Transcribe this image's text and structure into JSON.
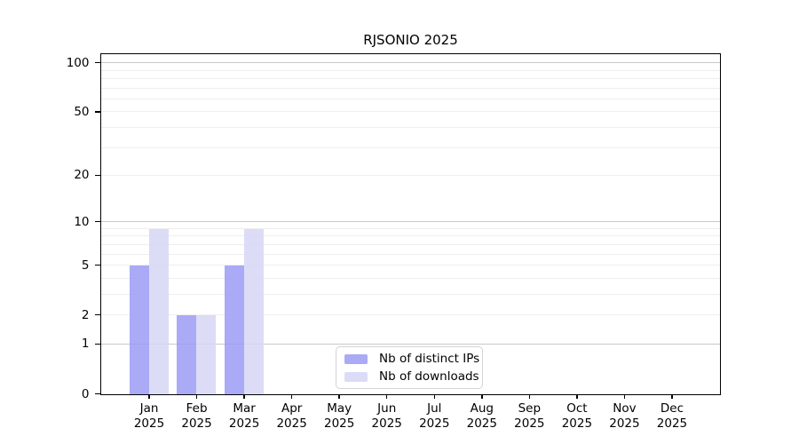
{
  "chart_data": {
    "type": "bar",
    "title": "RJSONIO 2025",
    "categories": [
      "Jan",
      "Feb",
      "Mar",
      "Apr",
      "May",
      "Jun",
      "Jul",
      "Aug",
      "Sep",
      "Oct",
      "Nov",
      "Dec"
    ],
    "x_year_label": "2025",
    "series": [
      {
        "name": "Nb of distinct IPs",
        "color": "rgba(155,155,246,0.85)",
        "solid_color": "#aaaaf7",
        "values": [
          5,
          2,
          5,
          0,
          0,
          0,
          0,
          0,
          0,
          0,
          0,
          0
        ]
      },
      {
        "name": "Nb of downloads",
        "color": "rgba(214,214,246,0.85)",
        "solid_color": "#dcdcf7",
        "values": [
          9,
          2,
          9,
          0,
          0,
          0,
          0,
          0,
          0,
          0,
          0,
          0
        ]
      }
    ],
    "y_axis": {
      "scale": "log10(value+1)",
      "tick_values": [
        0,
        1,
        2,
        5,
        10,
        20,
        50,
        100
      ],
      "tick_labels": [
        "0",
        "1",
        "2",
        "5",
        "10",
        "20",
        "50",
        "100"
      ],
      "axis_top_value": 112,
      "major_gridlines": [
        1,
        10,
        100
      ],
      "minor_gridlines": [
        2,
        3,
        4,
        5,
        6,
        7,
        8,
        9,
        20,
        30,
        40,
        50,
        60,
        70,
        80,
        90
      ]
    },
    "legend": {
      "position": "bottom-center"
    },
    "grid": "horizontal",
    "colors": {
      "axis": "#000000",
      "major_grid": "#c9c9c9",
      "minor_grid": "#eeeeee",
      "background": "#ffffff"
    }
  }
}
